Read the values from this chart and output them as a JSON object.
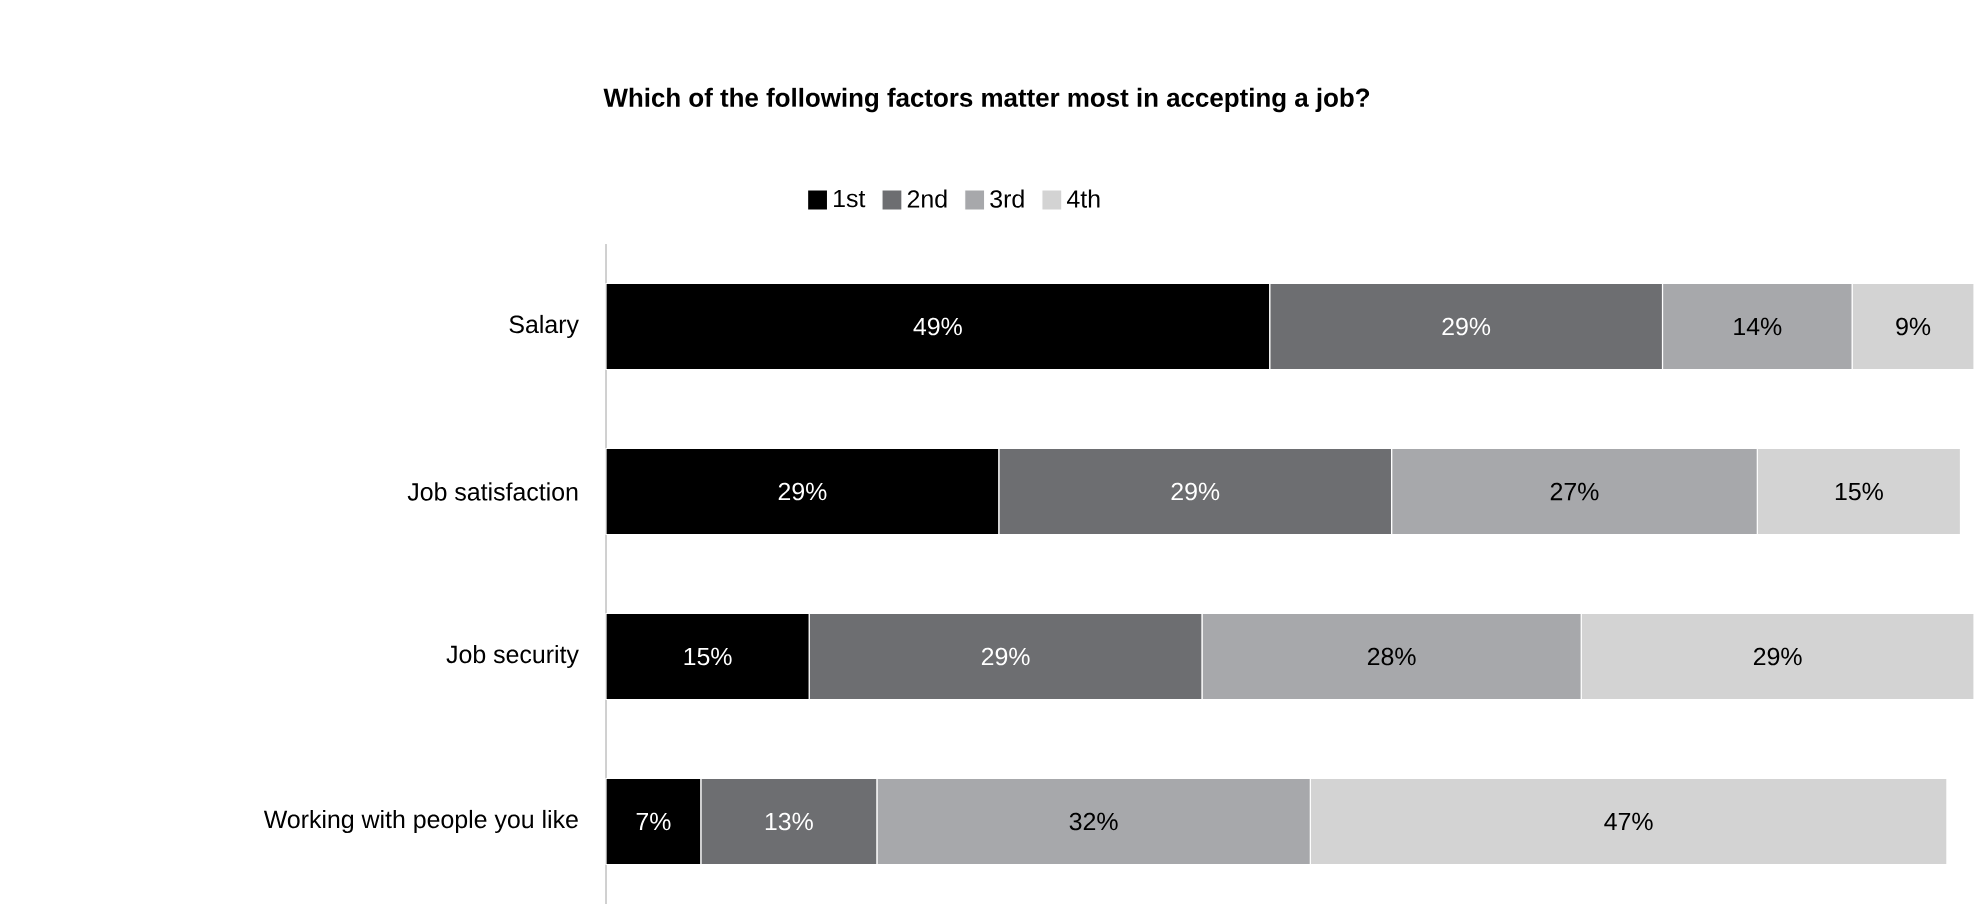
{
  "chart_data": {
    "type": "bar",
    "orientation": "horizontal",
    "stacked": true,
    "title": "Which of the following factors matter most in accepting a job?",
    "categories": [
      "Salary",
      "Job satisfaction",
      "Job security",
      "Working with people you like"
    ],
    "series": [
      {
        "name": "1st",
        "color": "#000000",
        "values": [
          49,
          29,
          15,
          7
        ],
        "value_labels": [
          "49%",
          "29%",
          "15%",
          "7%"
        ]
      },
      {
        "name": "2nd",
        "color": "#6d6e71",
        "values": [
          29,
          29,
          29,
          13
        ],
        "value_labels": [
          "29%",
          "29%",
          "29%",
          "13%"
        ]
      },
      {
        "name": "3rd",
        "color": "#a7a8ab",
        "values": [
          14,
          27,
          28,
          32
        ],
        "value_labels": [
          "14%",
          "27%",
          "28%",
          "32%"
        ]
      },
      {
        "name": "4th",
        "color": "#d3d3d3",
        "values": [
          9,
          15,
          29,
          47
        ],
        "value_labels": [
          "9%",
          "15%",
          "29%",
          "47%"
        ]
      }
    ],
    "legend": "top"
  }
}
